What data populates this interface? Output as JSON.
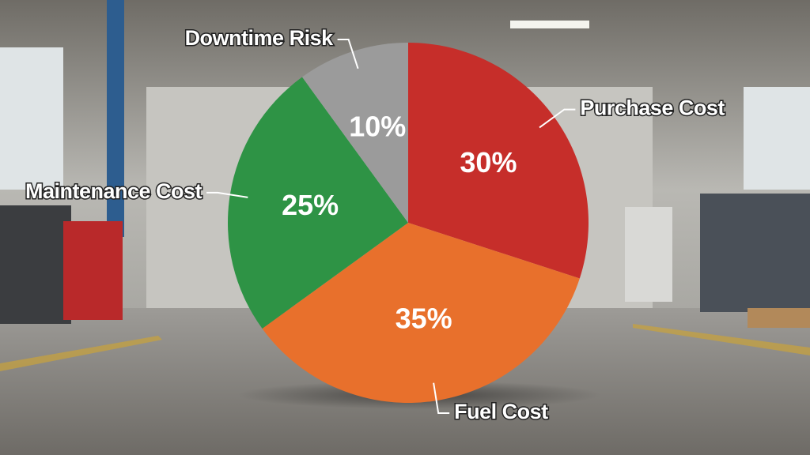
{
  "chart_data": {
    "type": "pie",
    "categories": [
      "Purchase Cost",
      "Fuel Cost",
      "Maintenance Cost",
      "Downtime Risk"
    ],
    "values": [
      30,
      35,
      25,
      10
    ],
    "value_labels": [
      "30%",
      "35%",
      "25%",
      "10%"
    ],
    "colors": [
      "#c62e2a",
      "#e8702c",
      "#2e9345",
      "#9b9b9b"
    ]
  }
}
